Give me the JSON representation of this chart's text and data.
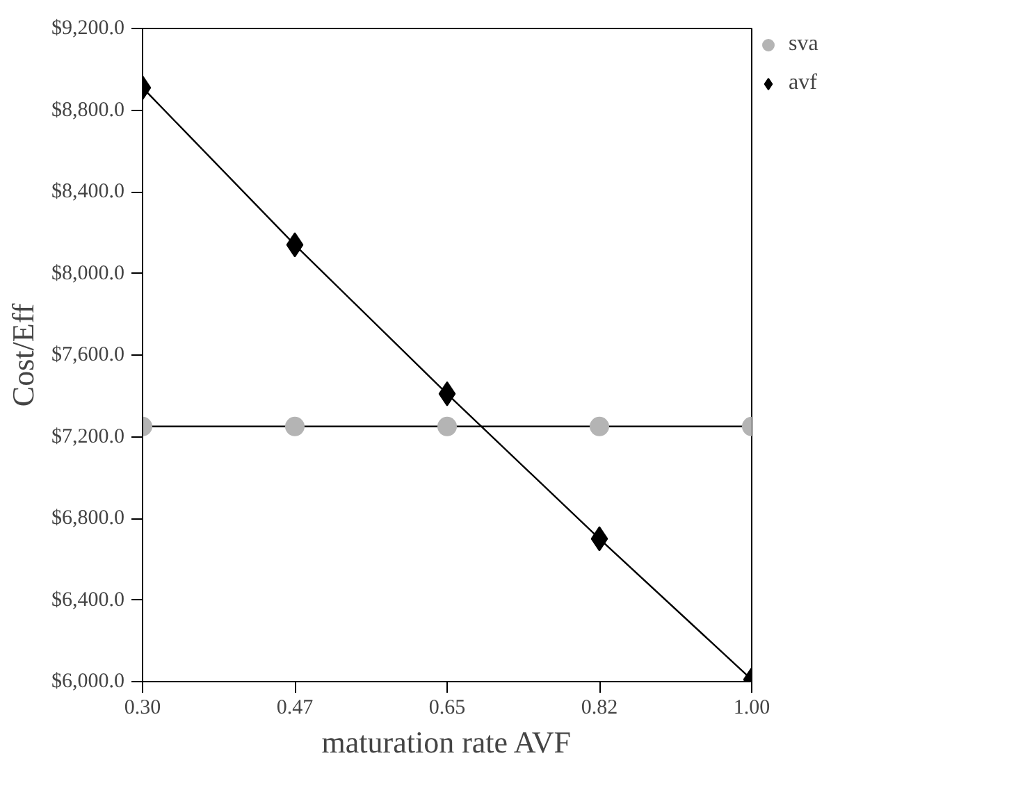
{
  "chart_data": {
    "type": "line",
    "xlabel": "maturation rate AVF",
    "ylabel": "Cost/Eff",
    "x": [
      0.3,
      0.475,
      0.65,
      0.825,
      1.0
    ],
    "series": [
      {
        "name": "sva",
        "color": "#b4b4b4",
        "marker": "circle",
        "values": [
          7250,
          7250,
          7250,
          7250,
          7250
        ]
      },
      {
        "name": "avf",
        "color": "#000000",
        "marker": "diamond",
        "values": [
          8910,
          8140,
          7410,
          6700,
          6010
        ]
      }
    ],
    "xlim": [
      0.3,
      1.0
    ],
    "xticks": [
      {
        "value": 0.3,
        "label": "0.30"
      },
      {
        "value": 0.475,
        "label": "0.47"
      },
      0.65,
      {
        "value": 0.825,
        "label": "0.82"
      },
      {
        "value": 1.0,
        "label": "1.00"
      }
    ],
    "ylim": [
      6000,
      9200
    ],
    "yticks": [
      {
        "value": 6000,
        "label": "$6,000.0"
      },
      {
        "value": 6400,
        "label": "$6,400.0"
      },
      {
        "value": 6800,
        "label": "$6,800.0"
      },
      {
        "value": 7200,
        "label": "$7,200.0"
      },
      {
        "value": 7600,
        "label": "$7,600.0"
      },
      {
        "value": 8000,
        "label": "$8,000.0"
      },
      {
        "value": 8400,
        "label": "$8,400.0"
      },
      {
        "value": 8800,
        "label": "$8,800.0"
      },
      {
        "value": 9200,
        "label": "$9,200.0"
      }
    ],
    "grid": false,
    "legend": "top right",
    "line_style": "solid"
  }
}
